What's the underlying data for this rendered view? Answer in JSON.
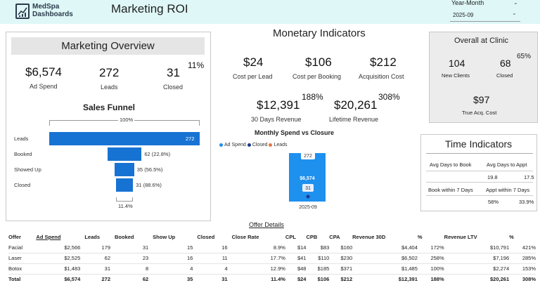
{
  "header": {
    "logo_line1": "MedSpa",
    "logo_line2": "Dashboards",
    "title": "Marketing ROI",
    "slicer_label": "Year-Month",
    "slicer_value": "2025-09",
    "bg_color": "#dff7f7"
  },
  "marketing_overview": {
    "title": "Marketing Overview",
    "ad_spend_value": "$6,574",
    "ad_spend_label": "Ad Spend",
    "leads_value": "272",
    "leads_label": "Leads",
    "closed_value": "31",
    "closed_label": "Closed",
    "closed_pct": "11%",
    "funnel_title": "Sales Funnel",
    "funnel_top_pct": "100%",
    "funnel_bottom_pct": "11.4%",
    "funnel": [
      {
        "label": "Leads",
        "value_text": "272",
        "value": 272
      },
      {
        "label": "Booked",
        "value_text": "62 (22.8%)",
        "value": 62
      },
      {
        "label": "Showed Up",
        "value_text": "35 (56.5%)",
        "value": 35
      },
      {
        "label": "Closed",
        "value_text": "31 (88.6%)",
        "value": 31
      }
    ]
  },
  "monetary": {
    "title": "Monetary Indicators",
    "cpl_value": "$24",
    "cpl_label": "Cost per Lead",
    "cpb_value": "$106",
    "cpb_label": "Cost per Booking",
    "acq_value": "$212",
    "acq_label": "Acquisition Cost",
    "rev30_value": "$12,391",
    "rev30_pct": "188%",
    "rev30_label": "30 Days Revenue",
    "ltv_value": "$20,261",
    "ltv_pct": "308%",
    "ltv_label": "Lifetime Revenue"
  },
  "chart_data": {
    "type": "bar",
    "title": "Monthly Spend vs Closure",
    "categories": [
      "2025-09"
    ],
    "series": [
      {
        "name": "Ad Spend",
        "values": [
          6574
        ],
        "color": "#1e90ee",
        "label": "$6,574"
      },
      {
        "name": "Closed",
        "values": [
          31
        ],
        "color": "#1a3a8a",
        "label": "31"
      },
      {
        "name": "Leads",
        "values": [
          272
        ],
        "color": "#e8743b",
        "label": "272"
      }
    ]
  },
  "overall": {
    "title": "Overall at Clinic",
    "new_clients_value": "104",
    "new_clients_label": "New Clients",
    "closed_value": "68",
    "closed_label": "Closed",
    "closed_pct": "65%",
    "true_acq_value": "$97",
    "true_acq_label": "True Acq. Cost"
  },
  "time_indicators": {
    "title": "Time Indicators",
    "h1": "Avg Days to Book",
    "h2": "Avg Days to Appt",
    "v1": "19.8",
    "v2": "17.5",
    "h3": "Book within 7 Days",
    "h4": "Appt within 7 Days",
    "v3": "58%",
    "v4": "33.9%"
  },
  "offer_details": {
    "title": "Offer Details",
    "columns": [
      "Offer",
      "Ad Spend",
      "Leads",
      "Booked",
      "Show Up",
      "Closed",
      "Close Rate",
      "CPL",
      "CPB",
      "CPA",
      "Revenue 30D",
      "%",
      "Revenue LTV",
      "%"
    ],
    "rows": [
      [
        "Facial",
        "$2,566",
        "179",
        "31",
        "15",
        "16",
        "8.9%",
        "$14",
        "$83",
        "$160",
        "$4,404",
        "172%",
        "$10,791",
        "421%"
      ],
      [
        "Laser",
        "$2,525",
        "62",
        "23",
        "16",
        "11",
        "17.7%",
        "$41",
        "$110",
        "$230",
        "$6,502",
        "258%",
        "$7,196",
        "285%"
      ],
      [
        "Botox",
        "$1,483",
        "31",
        "8",
        "4",
        "4",
        "12.9%",
        "$48",
        "$185",
        "$371",
        "$1,485",
        "100%",
        "$2,274",
        "153%"
      ],
      [
        "Total",
        "$6,574",
        "272",
        "62",
        "35",
        "31",
        "11.4%",
        "$24",
        "$106",
        "$212",
        "$12,391",
        "188%",
        "$20,261",
        "308%"
      ]
    ]
  }
}
